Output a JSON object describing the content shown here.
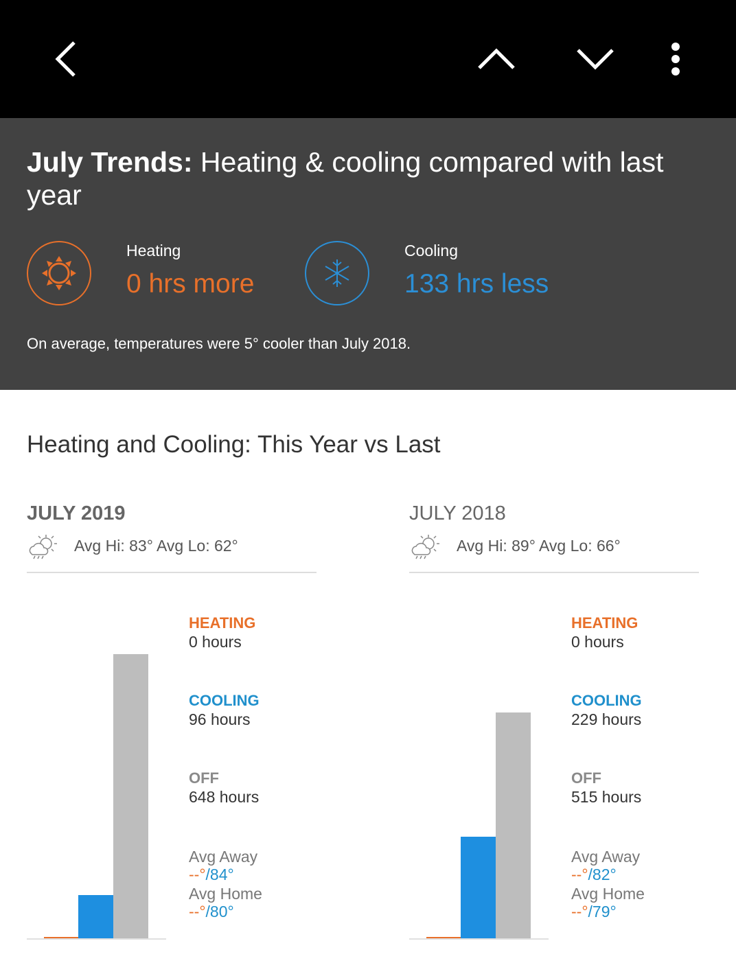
{
  "header": {
    "title_bold": "July Trends:",
    "title_rest": " Heating & cooling compared with last year",
    "heating": {
      "label": "Heating",
      "value": "0 hrs more"
    },
    "cooling": {
      "label": "Cooling",
      "value": "133 hrs less"
    },
    "summary": "On average, temperatures were 5° cooler than July 2018."
  },
  "section_title": "Heating and Cooling: This Year vs Last",
  "periods": [
    {
      "title": "JULY 2019",
      "weather": "Avg Hi: 83° Avg Lo: 62°",
      "heating": {
        "label": "HEATING",
        "hours": 0,
        "hours_label": "0 hours"
      },
      "cooling": {
        "label": "COOLING",
        "hours": 96,
        "hours_label": "96 hours"
      },
      "off": {
        "label": "OFF",
        "hours": 648,
        "hours_label": "648 hours"
      },
      "avg_away": {
        "label": "Avg Away",
        "heat": "--°",
        "cool": "/84°"
      },
      "avg_home": {
        "label": "Avg Home",
        "heat": "--°",
        "cool": "/80°"
      }
    },
    {
      "title": "JULY 2018",
      "weather": "Avg Hi: 89° Avg Lo: 66°",
      "heating": {
        "label": "HEATING",
        "hours": 0,
        "hours_label": "0 hours"
      },
      "cooling": {
        "label": "COOLING",
        "hours": 229,
        "hours_label": "229 hours"
      },
      "off": {
        "label": "OFF",
        "hours": 515,
        "hours_label": "515 hours"
      },
      "avg_away": {
        "label": "Avg Away",
        "heat": "--°",
        "cool": "/82°"
      },
      "avg_home": {
        "label": "Avg Home",
        "heat": "--°",
        "cool": "/79°"
      }
    }
  ]
}
